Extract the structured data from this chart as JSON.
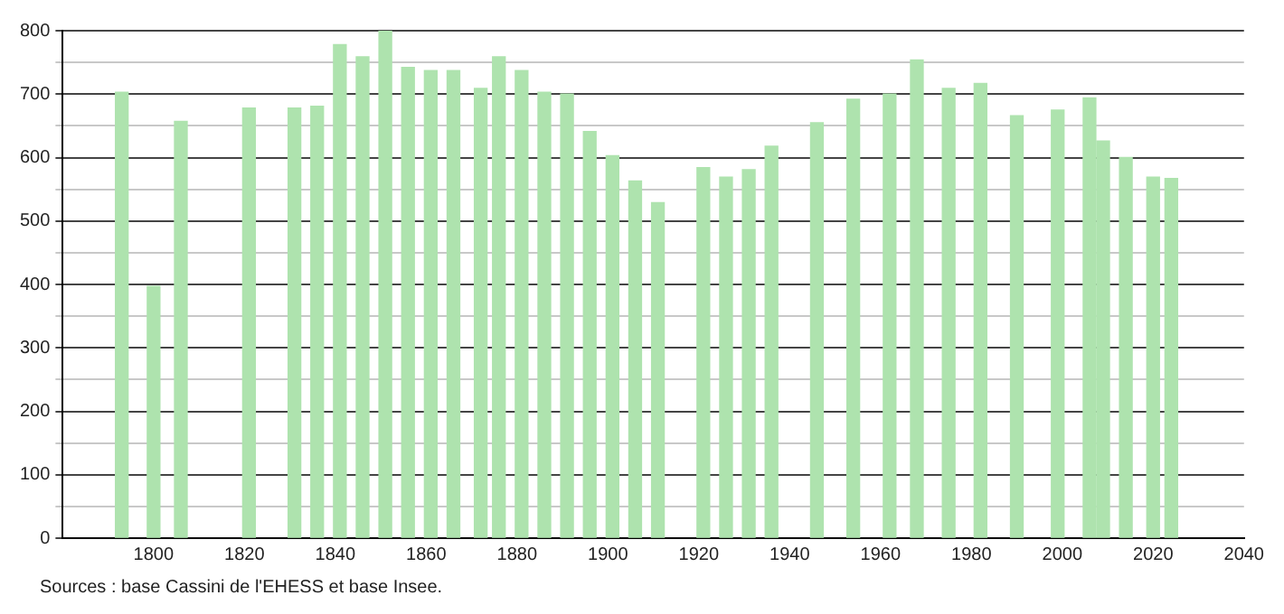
{
  "chart_data": {
    "type": "bar",
    "x": [
      1793,
      1800,
      1806,
      1821,
      1831,
      1836,
      1841,
      1846,
      1851,
      1856,
      1861,
      1866,
      1872,
      1876,
      1881,
      1886,
      1891,
      1896,
      1901,
      1906,
      1911,
      1921,
      1926,
      1931,
      1936,
      1946,
      1954,
      1962,
      1968,
      1975,
      1982,
      1990,
      1999,
      2006,
      2009,
      2014,
      2020,
      2024
    ],
    "values": [
      703,
      397,
      657,
      678,
      678,
      681,
      778,
      759,
      800,
      742,
      737,
      737,
      709,
      759,
      737,
      703,
      700,
      641,
      603,
      563,
      529,
      584,
      569,
      581,
      618,
      655,
      692,
      700,
      754,
      709,
      717,
      666,
      675,
      694,
      626,
      600,
      569,
      567
    ],
    "color": "#aee3ae",
    "xlim": [
      1780,
      2040
    ],
    "xticks": [
      1800,
      1820,
      1840,
      1860,
      1880,
      1900,
      1920,
      1940,
      1960,
      1980,
      2000,
      2020,
      2040
    ],
    "ylim": [
      0,
      800
    ],
    "yticks": [
      0,
      {
        "value": 50,
        "label": null
      },
      100,
      {
        "value": 150,
        "label": null
      },
      200,
      {
        "value": 250,
        "label": null
      },
      300,
      {
        "value": 350,
        "label": null
      },
      400,
      {
        "value": 450,
        "label": null
      },
      500,
      {
        "value": 550,
        "label": null
      },
      600,
      {
        "value": 650,
        "label": null
      },
      700,
      {
        "value": 750,
        "label": null
      },
      800
    ],
    "grid": "y",
    "annotations": [
      "Sources : base Cassini de l'EHESS et base Insee."
    ]
  }
}
